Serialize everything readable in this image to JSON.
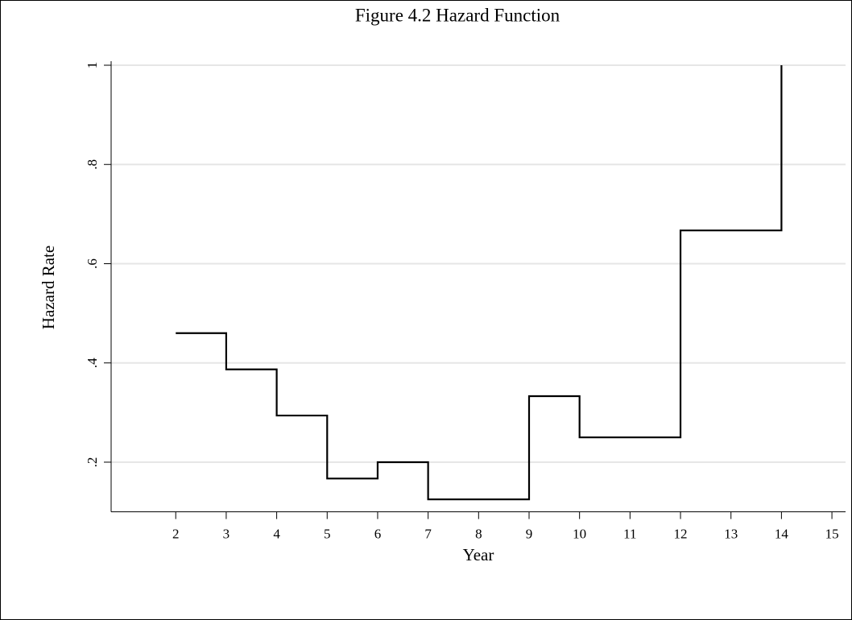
{
  "chart_data": {
    "type": "step",
    "title": "Figure 4.2 Hazard Function",
    "x_label": "Year",
    "y_label": "Hazard Rate",
    "x": [
      2,
      3,
      4,
      5,
      6,
      7,
      9,
      10,
      12,
      14
    ],
    "values": [
      0.46,
      0.387,
      0.294,
      0.167,
      0.2,
      0.125,
      0.333,
      0.25,
      0.667,
      1
    ],
    "color": "#000000",
    "xlim": [
      0.72,
      15.27
    ],
    "ylim": [
      0.1,
      1
    ],
    "xticks": [
      2,
      3,
      4,
      5,
      6,
      7,
      8,
      9,
      10,
      11,
      12,
      13,
      14,
      15
    ],
    "yticks": [
      {
        "value": 0.2,
        "label": ".2"
      },
      {
        "value": 0.4,
        "label": ".4"
      },
      {
        "value": 0.6,
        "label": ".6"
      },
      {
        "value": 0.8,
        "label": ".8"
      },
      1
    ],
    "grid": true
  }
}
